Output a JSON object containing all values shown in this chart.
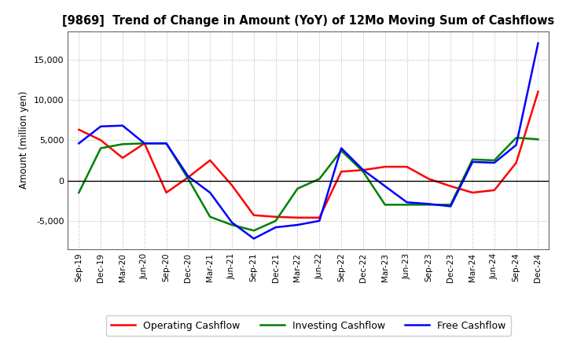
{
  "title": "[9869]  Trend of Change in Amount (YoY) of 12Mo Moving Sum of Cashflows",
  "ylabel": "Amount (million yen)",
  "x_labels": [
    "Sep-19",
    "Dec-19",
    "Mar-20",
    "Jun-20",
    "Sep-20",
    "Dec-20",
    "Mar-21",
    "Jun-21",
    "Sep-21",
    "Dec-21",
    "Mar-22",
    "Jun-22",
    "Sep-22",
    "Dec-22",
    "Mar-23",
    "Jun-23",
    "Sep-23",
    "Dec-23",
    "Mar-24",
    "Jun-24",
    "Sep-24",
    "Dec-24"
  ],
  "operating": [
    6300,
    5000,
    2800,
    4600,
    -1500,
    400,
    2500,
    -600,
    -4300,
    -4500,
    -4600,
    -4600,
    1100,
    1300,
    1700,
    1700,
    200,
    -700,
    -1500,
    -1200,
    2200,
    11000
  ],
  "investing": [
    -1500,
    4000,
    4500,
    4600,
    4600,
    200,
    -4500,
    -5500,
    -6200,
    -5000,
    -1000,
    200,
    3700,
    1100,
    -3000,
    -3000,
    -3000,
    -3000,
    2600,
    2500,
    5300,
    5100
  ],
  "free": [
    4600,
    6700,
    6800,
    4600,
    4600,
    500,
    -1500,
    -5200,
    -7200,
    -5800,
    -5500,
    -5000,
    4000,
    1300,
    -700,
    -2700,
    -2900,
    -3200,
    2300,
    2200,
    4400,
    17000
  ],
  "op_color": "#ff0000",
  "inv_color": "#008000",
  "free_color": "#0000ff",
  "ylim": [
    -8500,
    18500
  ],
  "yticks": [
    -5000,
    0,
    5000,
    10000,
    15000
  ],
  "bg_color": "#ffffff",
  "grid_color": "#999999"
}
